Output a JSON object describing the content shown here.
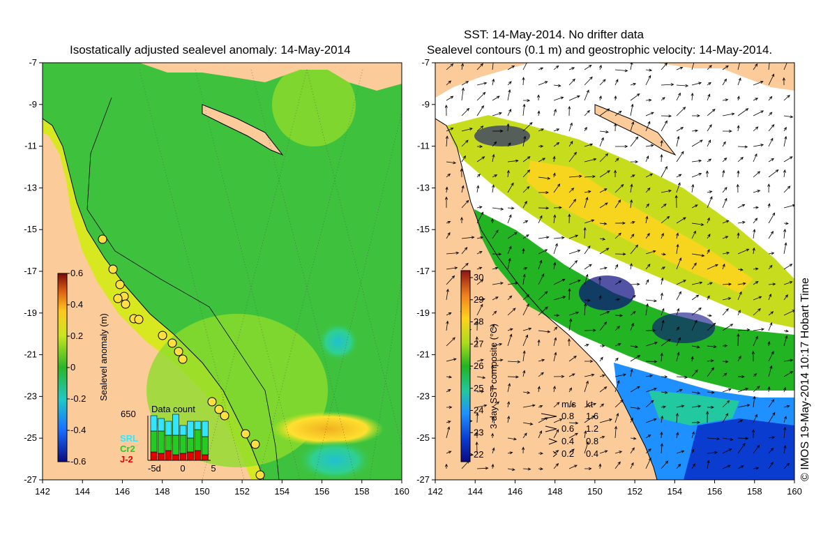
{
  "left_panel": {
    "title": "Isostatically adjusted sealevel anomaly: 14-May-2014",
    "colorbar": {
      "label": "Sealevel anomaly (m)",
      "ticks": [
        "0.6",
        "0.4",
        "0.2",
        "0",
        "-0.2",
        "-0.4",
        "-0.6"
      ]
    },
    "data_count": {
      "title": "Data count",
      "max_label": "650",
      "x_ticks": [
        "-5d",
        "0",
        "5"
      ],
      "legend": [
        {
          "label": "SRL",
          "color": "#33e6ff"
        },
        {
          "label": "Cr2",
          "color": "#22cc22"
        },
        {
          "label": "J-2",
          "color": "#e00000"
        }
      ]
    }
  },
  "right_panel": {
    "title_line1": "SST: 14-May-2014. No drifter data",
    "title_line2": "Sealevel contours (0.1 m) and geostrophic velocity: 14-May-2014.",
    "colorbar": {
      "label": "3-day SST composite (°C)",
      "ticks": [
        "30",
        "29",
        "28",
        "27",
        "26",
        "25",
        "24",
        "23",
        "22"
      ]
    },
    "velocity_legend": {
      "units": [
        "m/s",
        "kt"
      ],
      "rows": [
        {
          "ms": "0.8",
          "kt": "1.6"
        },
        {
          "ms": "0.6",
          "kt": "1.2"
        },
        {
          "ms": "0.4",
          "kt": "0.8"
        },
        {
          "ms": "0.2",
          "kt": "0.4"
        }
      ]
    }
  },
  "axes": {
    "lat_ticks": [
      "-7",
      "-9",
      "-11",
      "-13",
      "-15",
      "-17",
      "-19",
      "-21",
      "-23",
      "-25",
      "-27"
    ],
    "lon_ticks": [
      "142",
      "144",
      "146",
      "148",
      "150",
      "152",
      "154",
      "156",
      "158",
      "160"
    ]
  },
  "credit": "© IMOS 19-May-2014 10:17 Hobart Time",
  "colors": {
    "land": "#fccb9a",
    "ocean_mid": "#3ec23e",
    "ocean_light": "#7ada2a"
  }
}
